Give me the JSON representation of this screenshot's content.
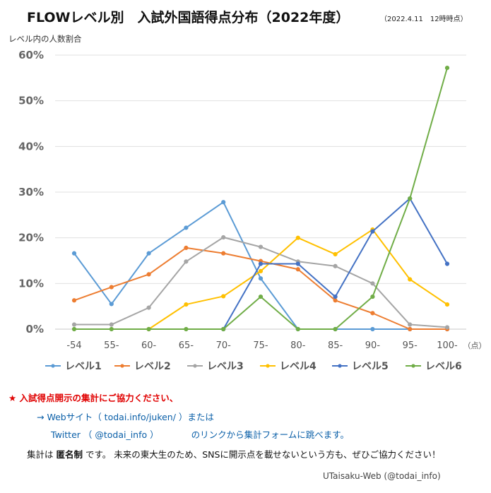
{
  "header": {
    "title": "FLOWレベル別　入試外国語得点分布（2022年度）",
    "date": "（2022.4.11　12時時点）",
    "y_caption": "レベル内の人数割合"
  },
  "chart_data": {
    "type": "line",
    "categories": [
      "-54",
      "55-",
      "60-",
      "65-",
      "70-",
      "75-",
      "80-",
      "85-",
      "90-",
      "95-",
      "100-"
    ],
    "x_unit": "（点）",
    "ylim": [
      0,
      0.6
    ],
    "yticks": [
      0,
      0.1,
      0.2,
      0.3,
      0.4,
      0.5,
      0.6
    ],
    "ytick_labels": [
      "0%",
      "10%",
      "20%",
      "30%",
      "40%",
      "50%",
      "60%"
    ],
    "grid": true,
    "legend_position": "bottom",
    "series": [
      {
        "name": "レベル1",
        "color": "#5b9bd5",
        "values": [
          0.166,
          0.055,
          0.166,
          0.222,
          0.278,
          0.111,
          0,
          0,
          0,
          0,
          0
        ]
      },
      {
        "name": "レベル2",
        "color": "#ed7d31",
        "values": [
          0.063,
          0.092,
          0.12,
          0.178,
          0.166,
          0.149,
          0.131,
          0.063,
          0.035,
          0,
          0
        ]
      },
      {
        "name": "レベル3",
        "color": "#a5a5a5",
        "values": [
          0.01,
          0.01,
          0.047,
          0.148,
          0.201,
          0.18,
          0.148,
          0.138,
          0.1,
          0.01,
          0.004
        ]
      },
      {
        "name": "レベル4",
        "color": "#ffc000",
        "values": [
          null,
          null,
          0,
          0.054,
          0.072,
          0.127,
          0.2,
          0.164,
          0.218,
          0.109,
          0.054
        ]
      },
      {
        "name": "レベル5",
        "color": "#4472c4",
        "values": [
          null,
          null,
          null,
          null,
          0,
          0.143,
          0.143,
          0.071,
          0.214,
          0.286,
          0.143
        ]
      },
      {
        "name": "レベル6",
        "color": "#70ad47",
        "values": [
          0,
          0,
          0,
          0,
          0,
          0.071,
          0,
          0,
          0.071,
          0.286,
          0.572
        ]
      }
    ]
  },
  "notes": {
    "line1": "★ 入試得点開示の集計にご協力ください、",
    "line2": "→ Webサイト（ todai.info/juken/ ）または",
    "line3a": "Twitter （ @todai_info ）",
    "line3b": "のリンクから集計フォームに跳べます。",
    "line4a": "集計は ",
    "line4b": "匿名制",
    "line4c": " です。 未来の東大生のため、SNSに開示点を載せないという方も、ぜひご協力ください！",
    "credit": "UTaisaku-Web (@todai_info)"
  }
}
